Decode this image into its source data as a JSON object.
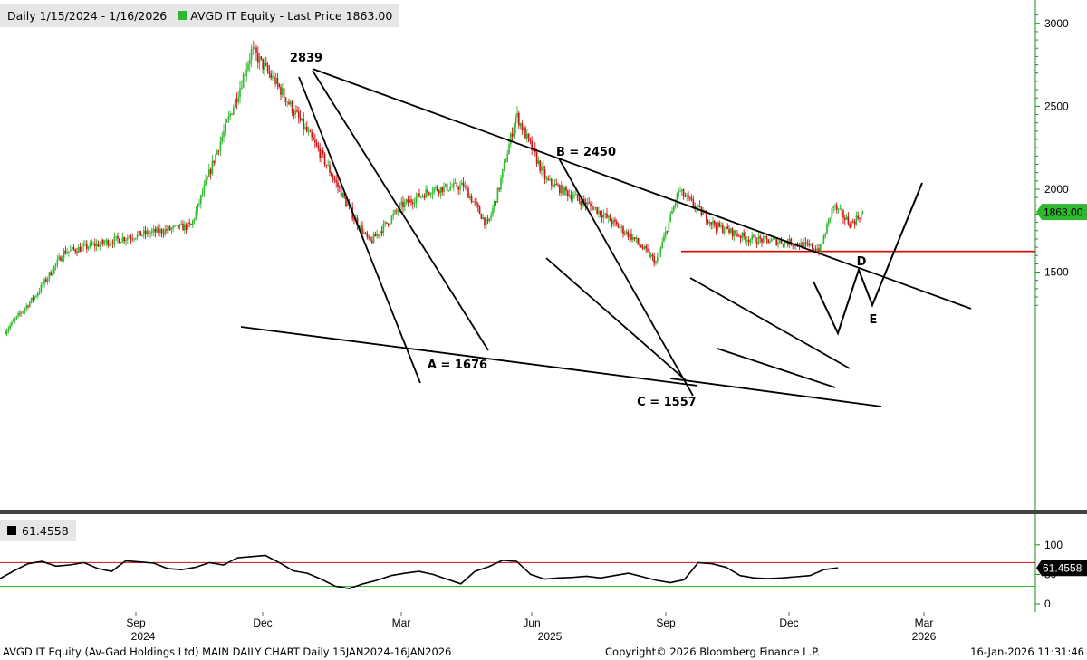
{
  "header": {
    "range_label": "Daily 1/15/2024 - 1/16/2026",
    "legend_label": "AVGD IT Equity - Last Price 1863.00",
    "legend_color": "#2db82d"
  },
  "footer": {
    "left": "AVGD IT Equity (Av-Gad Holdings Ltd) MAIN DAILY CHART Daily 15JAN2024-16JAN2026",
    "center": "Copyright© 2026 Bloomberg Finance L.P.",
    "right": "16-Jan-2026 11:31:46"
  },
  "chart_data": [
    {
      "type": "candlestick",
      "name": "AVGD IT Equity - Last Price",
      "ylim": [
        1240,
        3070
      ],
      "y_ticks": [
        1500,
        2000,
        2500,
        3000
      ],
      "x_axis": {
        "months": [
          "Sep",
          "Dec",
          "Mar",
          "Jun",
          "Sep",
          "Dec",
          "Mar"
        ],
        "years": [
          "2024",
          "2025",
          "2026"
        ]
      },
      "last_price": 1863.0,
      "last_price_label": "1863.00",
      "colors": {
        "up": "#2db82d",
        "down": "#cc1111",
        "support_line": "#dd0000",
        "last_price_tag": "#2db82d"
      },
      "support_level": 1625,
      "annotations": [
        {
          "text": "2839",
          "value": 2839
        },
        {
          "text": "A = 1676",
          "value": 1676
        },
        {
          "text": "B = 2450",
          "value": 2450
        },
        {
          "text": "C = 1557",
          "value": 1557
        },
        {
          "text": "D"
        },
        {
          "text": "E"
        }
      ],
      "key_points": [
        {
          "date": "2024-07-25",
          "price": 1130
        },
        {
          "date": "2024-08-15",
          "price": 1370
        },
        {
          "date": "2024-09-01",
          "price": 1620
        },
        {
          "date": "2024-10-15",
          "price": 1720
        },
        {
          "date": "2024-11-20",
          "price": 1780
        },
        {
          "date": "2024-12-05",
          "price": 2200
        },
        {
          "date": "2024-12-20",
          "price": 2600
        },
        {
          "date": "2024-12-28",
          "price": 2839
        },
        {
          "date": "2025-01-15",
          "price": 2600
        },
        {
          "date": "2025-02-10",
          "price": 2200
        },
        {
          "date": "2025-03-01",
          "price": 1850
        },
        {
          "date": "2025-03-12",
          "price": 1676
        },
        {
          "date": "2025-04-01",
          "price": 1900
        },
        {
          "date": "2025-04-20",
          "price": 2000
        },
        {
          "date": "2025-05-10",
          "price": 2020
        },
        {
          "date": "2025-05-25",
          "price": 1780
        },
        {
          "date": "2025-06-01",
          "price": 2000
        },
        {
          "date": "2025-06-12",
          "price": 2450
        },
        {
          "date": "2025-07-01",
          "price": 2050
        },
        {
          "date": "2025-08-01",
          "price": 1880
        },
        {
          "date": "2025-08-25",
          "price": 1700
        },
        {
          "date": "2025-09-08",
          "price": 1557
        },
        {
          "date": "2025-09-22",
          "price": 1990
        },
        {
          "date": "2025-10-15",
          "price": 1780
        },
        {
          "date": "2025-11-05",
          "price": 1700
        },
        {
          "date": "2025-12-01",
          "price": 1680
        },
        {
          "date": "2025-12-20",
          "price": 1640
        },
        {
          "date": "2025-12-28",
          "price": 1900
        },
        {
          "date": "2026-01-08",
          "price": 1790
        },
        {
          "date": "2026-01-16",
          "price": 1863
        }
      ]
    },
    {
      "type": "line",
      "name": "61.4558",
      "last_value_label": "61.4558",
      "ylim": [
        -5,
        120
      ],
      "y_ticks": [
        0,
        50,
        100
      ],
      "levels": [
        30,
        70
      ],
      "level_colors": {
        "upper": "#cc1111",
        "lower": "#2db82d"
      },
      "values": [
        43,
        56,
        68,
        72,
        64,
        66,
        70,
        60,
        55,
        73,
        71,
        69,
        60,
        58,
        62,
        70,
        66,
        78,
        80,
        82,
        70,
        56,
        52,
        42,
        30,
        26,
        34,
        40,
        48,
        52,
        55,
        50,
        42,
        34,
        55,
        63,
        74,
        72,
        50,
        42,
        44,
        45,
        47,
        44,
        48,
        52,
        46,
        40,
        36,
        41,
        70,
        68,
        62,
        48,
        44,
        43,
        44,
        46,
        48,
        58,
        61
      ]
    }
  ]
}
